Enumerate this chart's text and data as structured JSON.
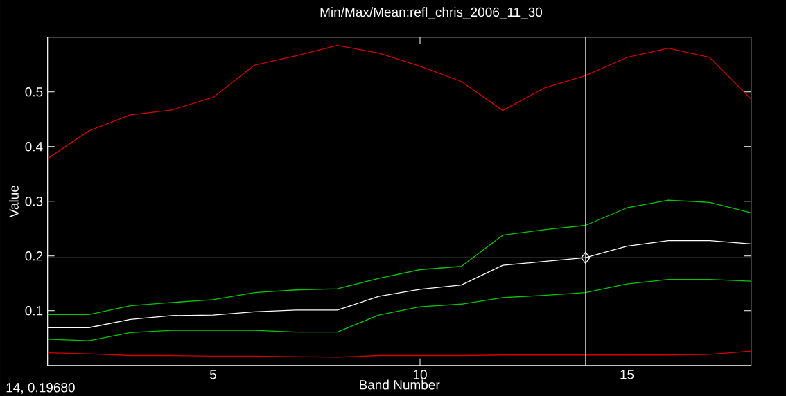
{
  "chart_data": {
    "type": "line",
    "title": "Min/Max/Mean:refl_chris_2006_11_30",
    "xlabel": "Band Number",
    "ylabel": "Value",
    "x": [
      1,
      2,
      3,
      4,
      5,
      6,
      7,
      8,
      9,
      10,
      11,
      12,
      13,
      14,
      15,
      16,
      17,
      18
    ],
    "series": [
      {
        "color": "#d40000",
        "values": [
          0.378,
          0.429,
          0.458,
          0.467,
          0.49,
          0.549,
          0.566,
          0.585,
          0.571,
          0.547,
          0.519,
          0.466,
          0.507,
          0.53,
          0.563,
          0.58,
          0.563,
          0.487
        ]
      },
      {
        "color": "#00c800",
        "values": [
          0.093,
          0.093,
          0.109,
          0.115,
          0.12,
          0.133,
          0.138,
          0.14,
          0.159,
          0.175,
          0.181,
          0.238,
          0.248,
          0.256,
          0.288,
          0.302,
          0.298,
          0.279
        ]
      },
      {
        "color": "#ffffff",
        "values": [
          0.069,
          0.069,
          0.084,
          0.091,
          0.092,
          0.098,
          0.101,
          0.101,
          0.126,
          0.139,
          0.147,
          0.183,
          0.19,
          0.197,
          0.218,
          0.228,
          0.228,
          0.222
        ]
      },
      {
        "color": "#00c800",
        "values": [
          0.048,
          0.045,
          0.06,
          0.064,
          0.064,
          0.064,
          0.061,
          0.061,
          0.092,
          0.107,
          0.112,
          0.124,
          0.128,
          0.133,
          0.149,
          0.157,
          0.157,
          0.154
        ]
      },
      {
        "type": "scatter",
        "marker": "diamond",
        "color": "#ffffff",
        "x": [
          14
        ],
        "values": [
          0.1968
        ]
      },
      {
        "color": "#d40000",
        "values": [
          0.023,
          0.021,
          0.018,
          0.018,
          0.017,
          0.017,
          0.016,
          0.015,
          0.018,
          0.018,
          0.018,
          0.019,
          0.019,
          0.019,
          0.019,
          0.019,
          0.02,
          0.026
        ]
      }
    ],
    "xlim": [
      1,
      18
    ],
    "ylim": [
      0,
      0.6
    ],
    "xticks": [
      5,
      10,
      15
    ],
    "yticks": [
      0.1,
      0.2,
      0.3,
      0.4,
      0.5
    ],
    "ref_lines": [
      {
        "axis": "x",
        "value": 14,
        "color": "#ffffff"
      },
      {
        "axis": "y",
        "value": 0.1968,
        "color": "#ffffff"
      }
    ],
    "annotations": [
      "14, 0.19680"
    ],
    "grid": false,
    "marker": "none",
    "line_style": "solid"
  }
}
